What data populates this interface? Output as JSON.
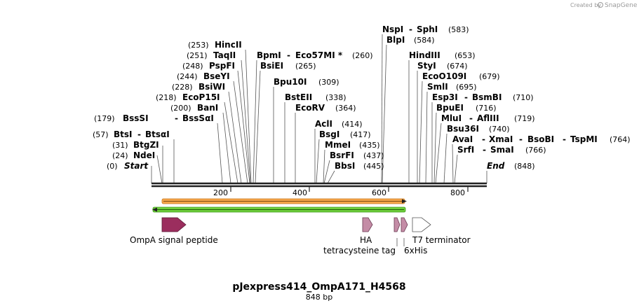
{
  "credit": {
    "created_by": "Created by",
    "brand": "SnapGene"
  },
  "map": {
    "title": "pJexpress414_OmpA171_H4568",
    "length_label": "848 bp",
    "start_label": "Start",
    "start_pos": "(0)",
    "end_label": "End",
    "end_pos": "(848)",
    "ticks": [
      "200",
      "400",
      "600",
      "800"
    ],
    "sites": [
      {
        "pos": "(24)",
        "names": [
          "NdeI"
        ]
      },
      {
        "pos": "(31)",
        "names": [
          "BtgZI"
        ]
      },
      {
        "pos": "(57)",
        "names": [
          "BtsI",
          "BtsαI"
        ]
      },
      {
        "pos": "(179)",
        "names": [
          "BssSI",
          "BssSαI"
        ]
      },
      {
        "pos": "(200)",
        "names": [
          "BanI"
        ]
      },
      {
        "pos": "(218)",
        "names": [
          "EcoP15I"
        ]
      },
      {
        "pos": "(228)",
        "names": [
          "BsiWI"
        ]
      },
      {
        "pos": "(244)",
        "names": [
          "BseYI"
        ]
      },
      {
        "pos": "(248)",
        "names": [
          "PspFI"
        ]
      },
      {
        "pos": "(251)",
        "names": [
          "TaqII"
        ]
      },
      {
        "pos": "(253)",
        "names": [
          "HincII"
        ]
      },
      {
        "pos": "(260)",
        "names": [
          "BpmI",
          "Eco57MI *"
        ]
      },
      {
        "pos": "(265)",
        "names": [
          "BsiEI"
        ]
      },
      {
        "pos": "(309)",
        "names": [
          "Bpu10I"
        ]
      },
      {
        "pos": "(338)",
        "names": [
          "BstEII"
        ]
      },
      {
        "pos": "(364)",
        "names": [
          "EcoRV"
        ]
      },
      {
        "pos": "(414)",
        "names": [
          "AclI"
        ]
      },
      {
        "pos": "(417)",
        "names": [
          "BsgI"
        ]
      },
      {
        "pos": "(435)",
        "names": [
          "MmeI"
        ]
      },
      {
        "pos": "(437)",
        "names": [
          "BsrFI"
        ]
      },
      {
        "pos": "(445)",
        "names": [
          "BbsI"
        ]
      },
      {
        "pos": "(583)",
        "names": [
          "NspI",
          "SphI"
        ]
      },
      {
        "pos": "(584)",
        "names": [
          "BlpI"
        ]
      },
      {
        "pos": "(653)",
        "names": [
          "HindIII"
        ]
      },
      {
        "pos": "(674)",
        "names": [
          "StyI"
        ]
      },
      {
        "pos": "(679)",
        "names": [
          "EcoO109I"
        ]
      },
      {
        "pos": "(695)",
        "names": [
          "SmlI"
        ]
      },
      {
        "pos": "(710)",
        "names": [
          "Esp3I",
          "BsmBI"
        ]
      },
      {
        "pos": "(716)",
        "names": [
          "BpuEI"
        ]
      },
      {
        "pos": "(719)",
        "names": [
          "MluI",
          "AflIII"
        ]
      },
      {
        "pos": "(740)",
        "names": [
          "Bsu36I"
        ]
      },
      {
        "pos": "(764)",
        "names": [
          "AvaI",
          "XmaI",
          "BsoBI",
          "TspMI"
        ]
      },
      {
        "pos": "(766)",
        "names": [
          "SrfI",
          "SmaI"
        ]
      }
    ],
    "features": [
      {
        "label": "OmpA signal peptide",
        "color": "#9b2e5e"
      },
      {
        "label": "HA",
        "color": "#c48ca6"
      },
      {
        "label": "tetracysteine tag",
        "color": "#c48ca6"
      },
      {
        "label": "6xHis",
        "color": "#c48ca6"
      },
      {
        "label": "T7 terminator",
        "color": "#ffffff"
      }
    ],
    "colors": {
      "orange_bar": "#f6a54a",
      "green_bar": "#6fcf3c",
      "backbone": "#222222"
    }
  }
}
